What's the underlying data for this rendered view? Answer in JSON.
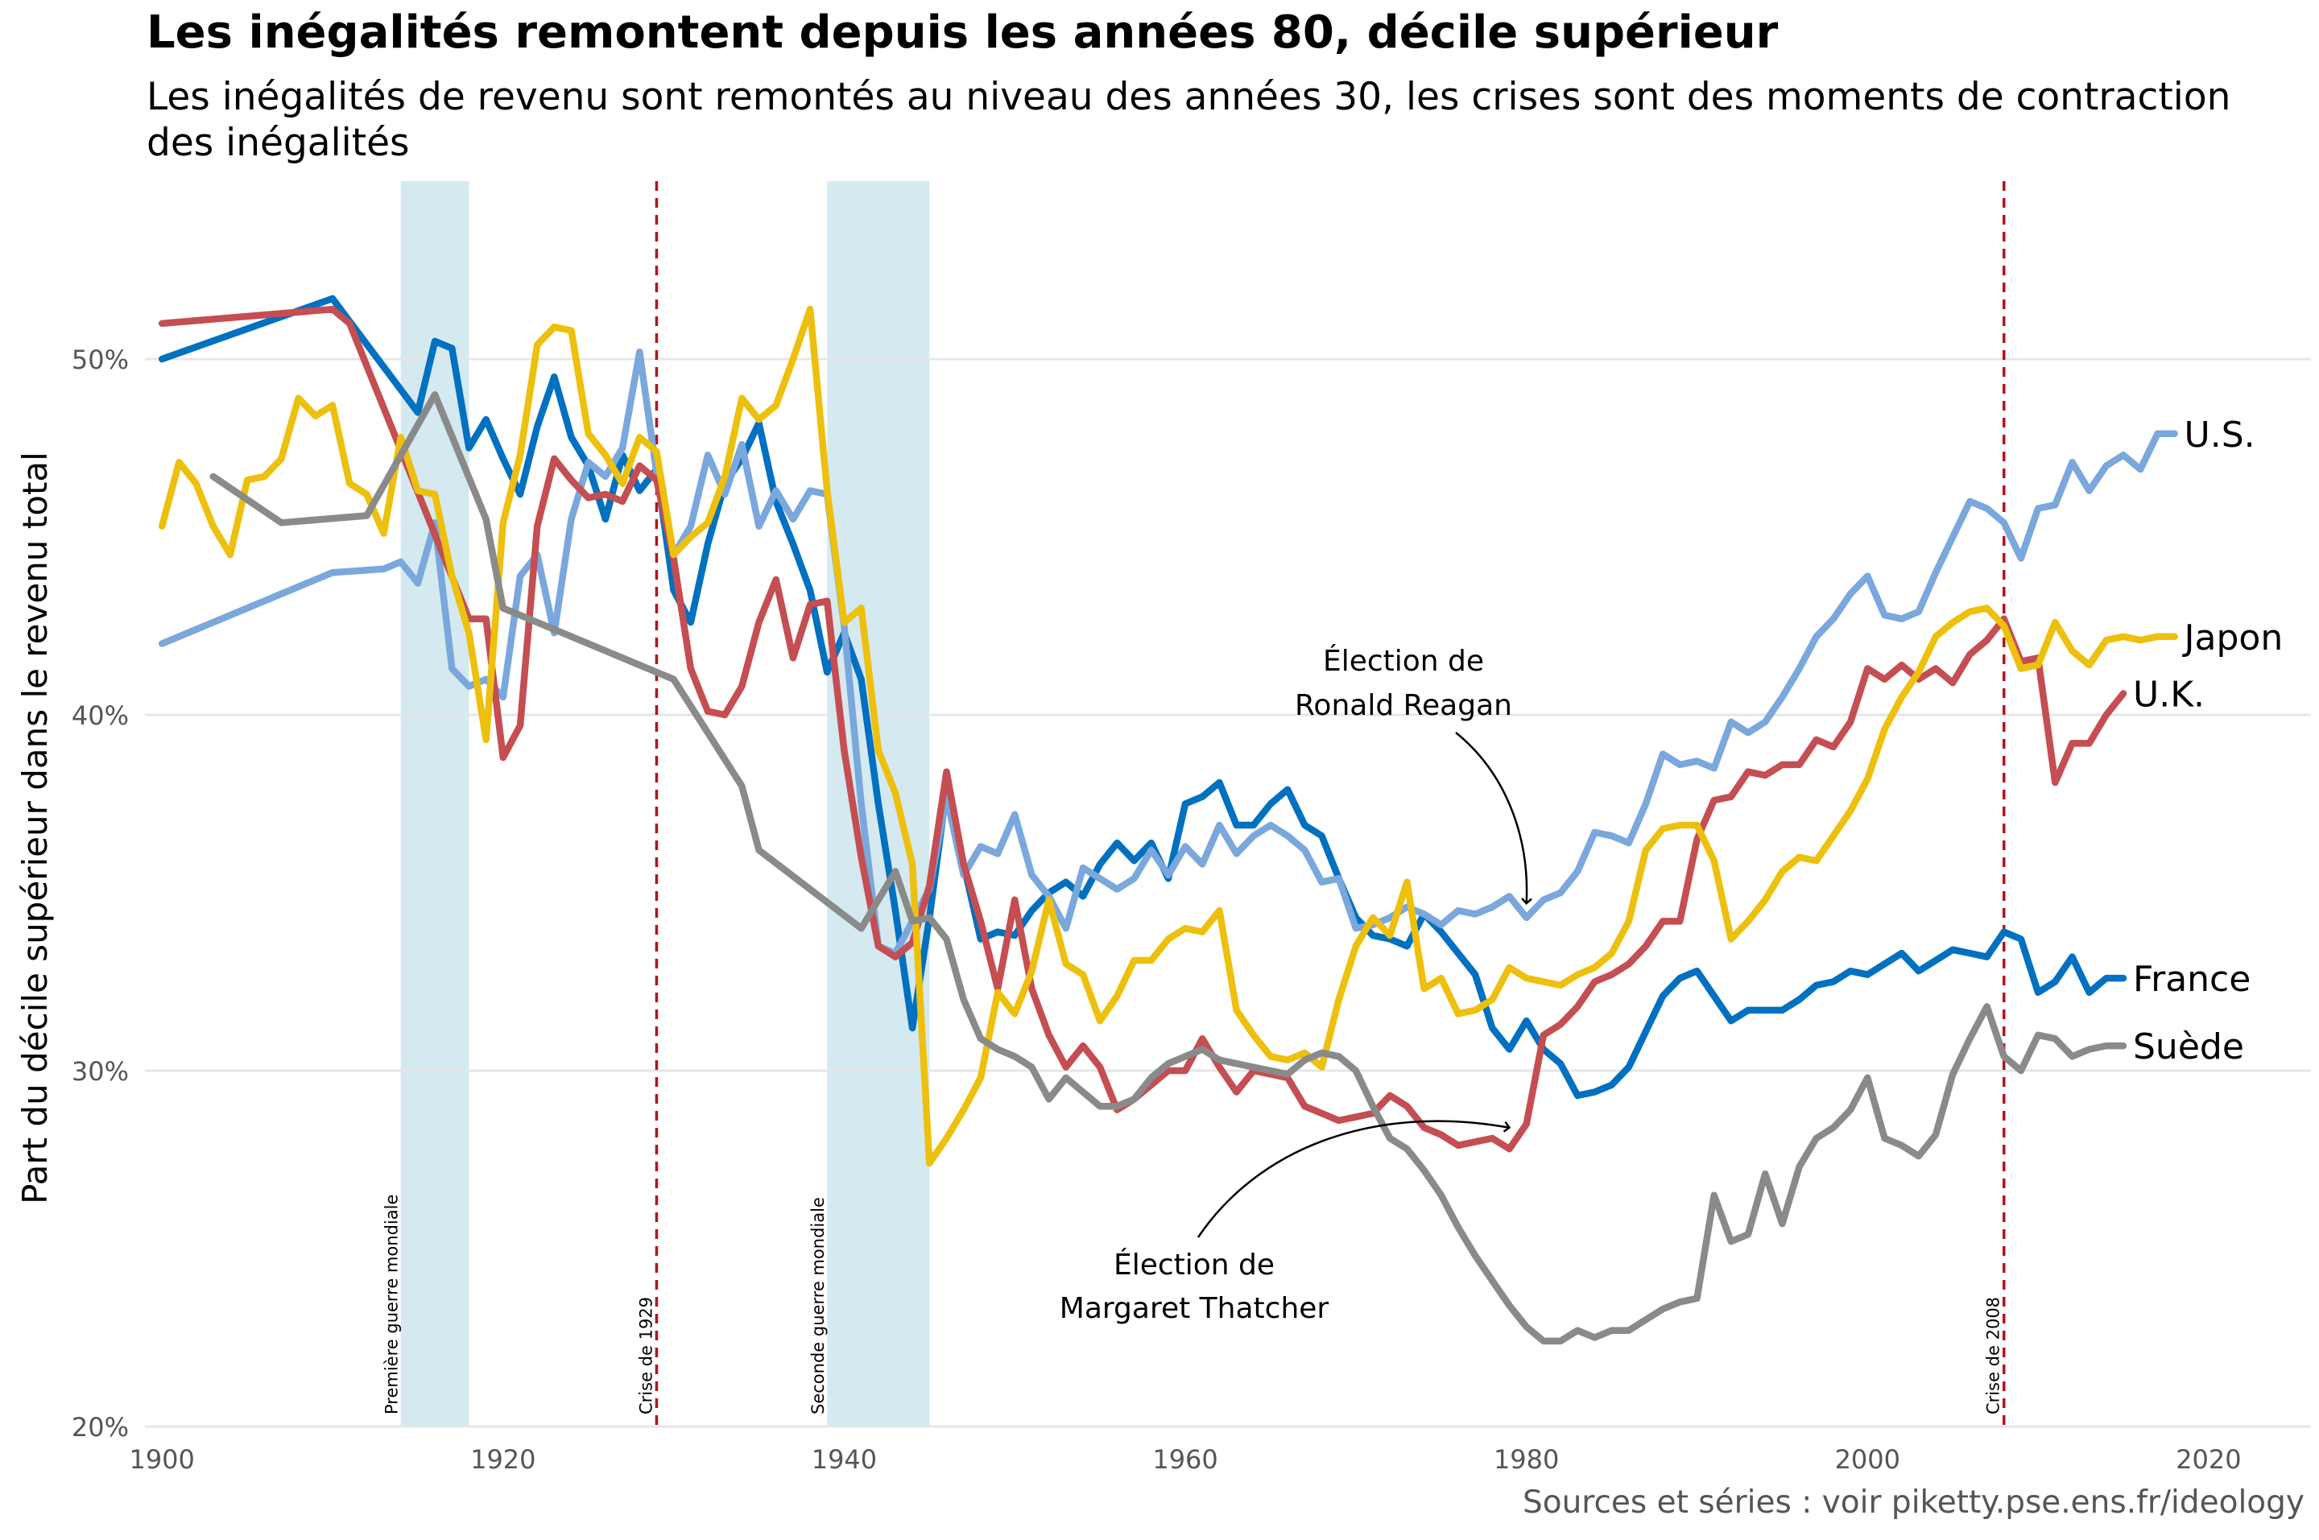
{
  "title": "Les inégalités remontent depuis les années 80, décile supérieur",
  "subtitle": "Les inégalités de revenu sont remontés au niveau des années 30, les crises sont des moments de contraction des inégalités",
  "source": "Sources et séries : voir piketty.pse.ens.fr/ideology",
  "chart_data": {
    "type": "line",
    "title": "Les inégalités remontent depuis les années 80, décile supérieur",
    "subtitle": "Les inégalités de revenu sont remontés au niveau des années 30, les crises sont des moments de contraction des inégalités",
    "xlabel": "",
    "ylabel": "Part du décile supérieur dans le revenu total",
    "xlim": [
      1899,
      2026
    ],
    "ylim": [
      20,
      55
    ],
    "x_ticks": [
      1900,
      1920,
      1940,
      1960,
      1980,
      2000,
      2020
    ],
    "y_ticks": [
      20,
      30,
      40,
      50
    ],
    "y_tick_labels": [
      "20%",
      "30%",
      "40%",
      "50%"
    ],
    "grid": "horizontal",
    "legend": "direct labels at line ends",
    "shaded_periods": [
      {
        "label": "Première guerre mondiale",
        "start": 1914,
        "end": 1918,
        "color": "#d5e9f0"
      },
      {
        "label": "Seconde guerre mondiale",
        "start": 1939,
        "end": 1945,
        "color": "#d5e9f0"
      }
    ],
    "vlines": [
      {
        "label": "Crise de 1929",
        "x": 1929,
        "color": "#b5121b"
      },
      {
        "label": "Crise de 2008",
        "x": 2008,
        "color": "#b5121b"
      }
    ],
    "annotations": [
      {
        "lines": [
          "Élection de",
          "Ronald Reagan"
        ],
        "target": [
          1980,
          34.7
        ]
      },
      {
        "lines": [
          "Élection de",
          "Margaret Thatcher"
        ],
        "target": [
          1979,
          28.4
        ]
      }
    ],
    "series": [
      {
        "name": "France",
        "color": "#0070c0",
        "label_y": 32.6,
        "x": [
          1900,
          1910,
          1915,
          1916,
          1917,
          1918,
          1919,
          1920,
          1921,
          1922,
          1923,
          1924,
          1925,
          1926,
          1927,
          1928,
          1929,
          1930,
          1931,
          1932,
          1933,
          1934,
          1935,
          1936,
          1937,
          1938,
          1939,
          1940,
          1941,
          1942,
          1943,
          1944,
          1945,
          1946,
          1947,
          1948,
          1949,
          1950,
          1951,
          1952,
          1953,
          1954,
          1955,
          1956,
          1957,
          1958,
          1959,
          1960,
          1961,
          1962,
          1963,
          1964,
          1965,
          1966,
          1967,
          1968,
          1969,
          1970,
          1971,
          1972,
          1973,
          1974,
          1975,
          1976,
          1977,
          1978,
          1979,
          1980,
          1981,
          1982,
          1983,
          1984,
          1985,
          1986,
          1987,
          1988,
          1989,
          1990,
          1991,
          1992,
          1993,
          1994,
          1995,
          1996,
          1997,
          1998,
          1999,
          2000,
          2001,
          2002,
          2003,
          2004,
          2005,
          2006,
          2007,
          2008,
          2009,
          2010,
          2011,
          2012,
          2013,
          2014,
          2015
        ],
        "y": [
          50.0,
          51.7,
          48.5,
          50.5,
          50.3,
          47.5,
          48.3,
          47.2,
          46.2,
          48.1,
          49.5,
          47.8,
          47.0,
          45.5,
          47.3,
          46.3,
          46.9,
          43.5,
          42.6,
          44.8,
          46.5,
          47.2,
          48.2,
          46.0,
          44.8,
          43.5,
          41.2,
          42.3,
          41.0,
          37.5,
          34.5,
          31.2,
          34.3,
          37.9,
          35.8,
          33.7,
          33.9,
          33.8,
          34.5,
          35.0,
          35.3,
          34.9,
          35.8,
          36.4,
          35.9,
          36.4,
          35.4,
          37.5,
          37.7,
          38.1,
          36.9,
          36.9,
          37.5,
          37.9,
          36.9,
          36.6,
          35.4,
          34.3,
          33.8,
          33.7,
          33.5,
          34.4,
          33.9,
          33.3,
          32.7,
          31.2,
          30.6,
          31.4,
          30.6,
          30.2,
          29.3,
          29.4,
          29.6,
          30.1,
          31.1,
          32.1,
          32.6,
          32.8,
          32.1,
          31.4,
          31.7,
          31.7,
          31.7,
          32.0,
          32.4,
          32.5,
          32.8,
          32.7,
          33.0,
          33.3,
          32.8,
          33.1,
          33.4,
          33.3,
          33.2,
          33.9,
          33.7,
          32.2,
          32.5,
          33.2,
          32.2,
          32.6,
          32.6
        ]
      },
      {
        "name": "U.S.",
        "color": "#7aa7dc",
        "label_y": 47.9,
        "x": [
          1900,
          1910,
          1913,
          1914,
          1915,
          1916,
          1917,
          1918,
          1919,
          1920,
          1921,
          1922,
          1923,
          1924,
          1925,
          1926,
          1927,
          1928,
          1929,
          1930,
          1931,
          1932,
          1933,
          1934,
          1935,
          1936,
          1937,
          1938,
          1939,
          1940,
          1941,
          1942,
          1943,
          1944,
          1945,
          1946,
          1947,
          1948,
          1949,
          1950,
          1951,
          1952,
          1953,
          1954,
          1955,
          1956,
          1957,
          1958,
          1959,
          1960,
          1961,
          1962,
          1963,
          1964,
          1965,
          1966,
          1967,
          1968,
          1969,
          1970,
          1971,
          1972,
          1973,
          1974,
          1975,
          1976,
          1977,
          1978,
          1979,
          1980,
          1981,
          1982,
          1983,
          1984,
          1985,
          1986,
          1987,
          1988,
          1989,
          1990,
          1991,
          1992,
          1993,
          1994,
          1995,
          1996,
          1997,
          1998,
          1999,
          2000,
          2001,
          2002,
          2003,
          2004,
          2005,
          2006,
          2007,
          2008,
          2009,
          2010,
          2011,
          2012,
          2013,
          2014,
          2015,
          2016,
          2017,
          2018
        ],
        "y": [
          42.0,
          44.0,
          44.1,
          44.3,
          43.7,
          45.4,
          41.3,
          40.8,
          41.0,
          40.5,
          43.9,
          44.5,
          42.3,
          45.5,
          47.1,
          46.7,
          47.5,
          50.2,
          46.8,
          44.5,
          45.3,
          47.3,
          46.2,
          47.6,
          45.3,
          46.3,
          45.5,
          46.3,
          46.2,
          42.5,
          37.5,
          33.5,
          33.3,
          34.2,
          35.1,
          37.7,
          35.5,
          36.3,
          36.1,
          37.2,
          35.5,
          34.9,
          34.0,
          35.7,
          35.4,
          35.1,
          35.4,
          36.2,
          35.5,
          36.3,
          35.8,
          36.9,
          36.1,
          36.6,
          36.9,
          36.6,
          36.2,
          35.3,
          35.4,
          34.0,
          34.1,
          34.3,
          34.6,
          34.4,
          34.1,
          34.5,
          34.4,
          34.6,
          34.9,
          34.3,
          34.8,
          35.0,
          35.6,
          36.7,
          36.6,
          36.4,
          37.5,
          38.9,
          38.6,
          38.7,
          38.5,
          39.8,
          39.5,
          39.8,
          40.5,
          41.3,
          42.2,
          42.7,
          43.4,
          43.9,
          42.8,
          42.7,
          42.9,
          44.0,
          45.0,
          46.0,
          45.8,
          45.4,
          44.4,
          45.8,
          45.9,
          47.1,
          46.3,
          47.0,
          47.3,
          46.9,
          47.9,
          47.9
        ]
      },
      {
        "name": "U.K.",
        "color": "#c44e52",
        "label_y": 40.6,
        "x": [
          1900,
          1910,
          1911,
          1918,
          1919,
          1920,
          1921,
          1922,
          1923,
          1924,
          1925,
          1926,
          1927,
          1928,
          1929,
          1930,
          1931,
          1932,
          1933,
          1934,
          1935,
          1936,
          1937,
          1938,
          1939,
          1940,
          1941,
          1942,
          1943,
          1944,
          1945,
          1946,
          1947,
          1948,
          1949,
          1950,
          1951,
          1952,
          1953,
          1954,
          1955,
          1956,
          1957,
          1958,
          1959,
          1960,
          1961,
          1962,
          1963,
          1964,
          1965,
          1966,
          1967,
          1968,
          1969,
          1970,
          1971,
          1972,
          1973,
          1974,
          1975,
          1976,
          1977,
          1978,
          1979,
          1980,
          1981,
          1982,
          1983,
          1984,
          1985,
          1986,
          1987,
          1988,
          1989,
          1990,
          1991,
          1992,
          1993,
          1994,
          1995,
          1996,
          1997,
          1998,
          1999,
          2000,
          2001,
          2002,
          2003,
          2004,
          2005,
          2006,
          2007,
          2008,
          2009,
          2010,
          2011,
          2012,
          2013,
          2014,
          2015
        ],
        "y": [
          51.0,
          51.4,
          51.0,
          42.7,
          42.7,
          38.8,
          39.7,
          45.3,
          47.2,
          46.6,
          46.1,
          46.2,
          46.0,
          47.0,
          46.6,
          44.4,
          41.3,
          40.1,
          40.0,
          40.8,
          42.6,
          43.8,
          41.6,
          43.1,
          43.2,
          39.0,
          36.0,
          33.5,
          33.2,
          33.6,
          35.2,
          38.4,
          35.8,
          34.2,
          32.3,
          34.8,
          32.3,
          31.0,
          30.1,
          30.7,
          30.1,
          28.9,
          29.2,
          29.6,
          30.0,
          30.0,
          30.9,
          30.1,
          29.4,
          30.0,
          29.9,
          29.8,
          29.0,
          28.8,
          28.6,
          28.7,
          28.8,
          29.3,
          29.0,
          28.4,
          28.2,
          27.9,
          28.0,
          28.1,
          27.8,
          28.5,
          31.0,
          31.3,
          31.8,
          32.5,
          32.7,
          33.0,
          33.5,
          34.2,
          34.2,
          36.5,
          37.6,
          37.7,
          38.4,
          38.3,
          38.6,
          38.6,
          39.3,
          39.1,
          39.8,
          41.3,
          41.0,
          41.4,
          41.0,
          41.3,
          40.9,
          41.7,
          42.1,
          42.7,
          41.5,
          41.6,
          38.1,
          39.2,
          39.2,
          40.0,
          40.6
        ]
      },
      {
        "name": "Japon",
        "color": "#edc00d",
        "label_y": 42.2,
        "x": [
          1900,
          1901,
          1902,
          1903,
          1904,
          1905,
          1906,
          1907,
          1908,
          1909,
          1910,
          1911,
          1912,
          1913,
          1914,
          1915,
          1916,
          1917,
          1918,
          1919,
          1920,
          1921,
          1922,
          1923,
          1924,
          1925,
          1926,
          1927,
          1928,
          1929,
          1930,
          1931,
          1932,
          1933,
          1934,
          1935,
          1936,
          1937,
          1938,
          1939,
          1940,
          1941,
          1942,
          1943,
          1944,
          1945,
          1946,
          1947,
          1948,
          1949,
          1950,
          1951,
          1952,
          1953,
          1954,
          1955,
          1956,
          1957,
          1958,
          1959,
          1960,
          1961,
          1962,
          1963,
          1964,
          1965,
          1966,
          1967,
          1968,
          1969,
          1970,
          1971,
          1972,
          1973,
          1974,
          1975,
          1976,
          1977,
          1978,
          1979,
          1980,
          1981,
          1982,
          1983,
          1984,
          1985,
          1986,
          1987,
          1988,
          1989,
          1990,
          1991,
          1992,
          1993,
          1994,
          1995,
          1996,
          1997,
          1998,
          1999,
          2000,
          2001,
          2002,
          2003,
          2004,
          2005,
          2006,
          2007,
          2008,
          2009,
          2010,
          2011,
          2012,
          2013,
          2014,
          2015,
          2016,
          2017,
          2018
        ],
        "y": [
          45.3,
          47.1,
          46.5,
          45.3,
          44.5,
          46.6,
          46.7,
          47.2,
          48.9,
          48.4,
          48.7,
          46.5,
          46.2,
          45.1,
          47.8,
          46.3,
          46.2,
          43.9,
          42.3,
          39.3,
          45.4,
          47.3,
          50.4,
          50.9,
          50.8,
          47.9,
          47.3,
          46.5,
          47.8,
          47.4,
          44.5,
          45.0,
          45.4,
          46.7,
          48.9,
          48.3,
          48.7,
          50.0,
          51.4,
          46.3,
          42.6,
          43.0,
          39.0,
          37.8,
          35.8,
          27.4,
          28.1,
          28.9,
          29.8,
          32.2,
          31.6,
          32.8,
          34.8,
          33.0,
          32.7,
          31.4,
          32.1,
          33.1,
          33.1,
          33.7,
          34.0,
          33.9,
          34.5,
          31.7,
          31.0,
          30.4,
          30.3,
          30.5,
          30.1,
          32.0,
          33.5,
          34.3,
          33.8,
          35.3,
          32.3,
          32.6,
          31.6,
          31.7,
          32.0,
          32.9,
          32.6,
          32.5,
          32.4,
          32.7,
          32.9,
          33.3,
          34.2,
          36.2,
          36.8,
          36.9,
          36.9,
          35.9,
          33.7,
          34.2,
          34.8,
          35.6,
          36.0,
          35.9,
          36.6,
          37.3,
          38.2,
          39.6,
          40.5,
          41.2,
          42.2,
          42.6,
          42.9,
          43.0,
          42.5,
          41.3,
          41.4,
          42.6,
          41.8,
          41.4,
          42.1,
          42.2,
          42.1,
          42.2,
          42.2
        ]
      },
      {
        "name": "Suède",
        "color": "#8a8a8a",
        "label_y": 30.7,
        "x": [
          1903,
          1907,
          1912,
          1916,
          1919,
          1920,
          1930,
          1934,
          1935,
          1941,
          1943,
          1944,
          1945,
          1946,
          1947,
          1948,
          1949,
          1950,
          1951,
          1952,
          1953,
          1954,
          1955,
          1956,
          1957,
          1958,
          1959,
          1960,
          1961,
          1962,
          1963,
          1964,
          1965,
          1966,
          1967,
          1968,
          1969,
          1970,
          1971,
          1972,
          1973,
          1974,
          1975,
          1976,
          1977,
          1978,
          1979,
          1980,
          1981,
          1982,
          1983,
          1984,
          1985,
          1986,
          1987,
          1988,
          1989,
          1990,
          1991,
          1992,
          1993,
          1994,
          1995,
          1996,
          1997,
          1998,
          1999,
          2000,
          2001,
          2002,
          2003,
          2004,
          2005,
          2006,
          2007,
          2008,
          2009,
          2010,
          2011,
          2012,
          2013,
          2014,
          2015
        ],
        "y": [
          46.7,
          45.4,
          45.6,
          49.0,
          45.5,
          43.0,
          41.0,
          38.0,
          36.2,
          34.0,
          35.6,
          34.2,
          34.3,
          33.7,
          32.0,
          30.9,
          30.6,
          30.4,
          30.1,
          29.2,
          29.8,
          29.4,
          29.0,
          29.0,
          29.2,
          29.8,
          30.2,
          30.4,
          30.6,
          30.3,
          30.2,
          30.1,
          30.0,
          29.9,
          30.3,
          30.5,
          30.4,
          30.0,
          29.0,
          28.1,
          27.8,
          27.2,
          26.5,
          25.6,
          24.8,
          24.1,
          23.4,
          22.8,
          22.4,
          22.4,
          22.7,
          22.5,
          22.7,
          22.7,
          23.0,
          23.3,
          23.5,
          23.6,
          26.5,
          25.2,
          25.4,
          27.1,
          25.7,
          27.3,
          28.1,
          28.4,
          28.9,
          29.8,
          28.1,
          27.9,
          27.6,
          28.2,
          29.9,
          30.9,
          31.8,
          30.4,
          30.0,
          31.0,
          30.9,
          30.4,
          30.6,
          30.7,
          30.7
        ]
      }
    ]
  }
}
